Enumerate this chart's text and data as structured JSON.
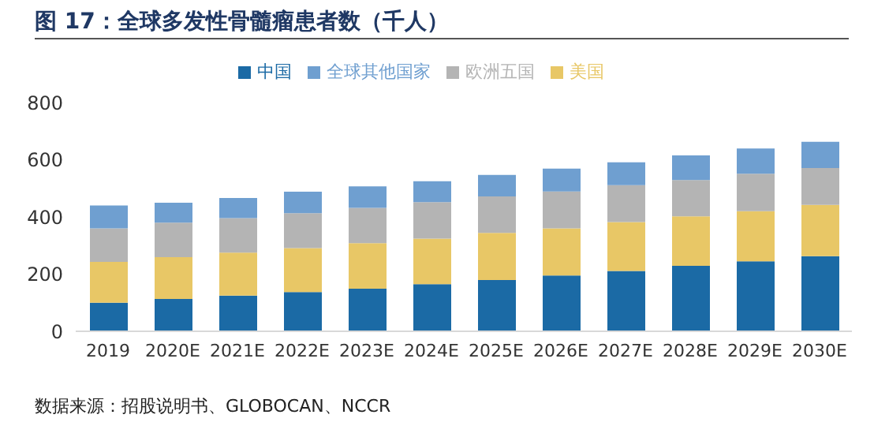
{
  "chart_data": {
    "type": "bar",
    "title": "图 17：全球多发性骨髓瘤患者数（千人）",
    "stacked": true,
    "categories": [
      "2019",
      "2020E",
      "2021E",
      "2022E",
      "2023E",
      "2024E",
      "2025E",
      "2026E",
      "2027E",
      "2028E",
      "2029E",
      "2030E"
    ],
    "series": [
      {
        "name": "中国",
        "color": "#1b6aa5",
        "values": [
          100,
          113,
          125,
          137,
          149,
          165,
          179,
          195,
          211,
          229,
          245,
          263
        ]
      },
      {
        "name": "美国",
        "color": "#e8c766",
        "values": [
          143,
          146,
          150,
          154,
          159,
          159,
          165,
          165,
          171,
          173,
          175,
          179
        ]
      },
      {
        "name": "欧洲五国",
        "color": "#b4b4b4",
        "values": [
          117,
          121,
          121,
          122,
          124,
          128,
          128,
          129,
          129,
          127,
          131,
          129
        ]
      },
      {
        "name": "全球其他国家",
        "color": "#6f9fd0",
        "values": [
          80,
          70,
          70,
          75,
          75,
          73,
          75,
          80,
          80,
          86,
          88,
          92
        ]
      }
    ],
    "ylim": [
      0,
      800
    ],
    "yticks": [
      0,
      200,
      400,
      600,
      800
    ],
    "grid": false,
    "legend": "top",
    "annotations": [
      "数据来源：招股说明书、GLOBOCAN、NCCR"
    ]
  }
}
